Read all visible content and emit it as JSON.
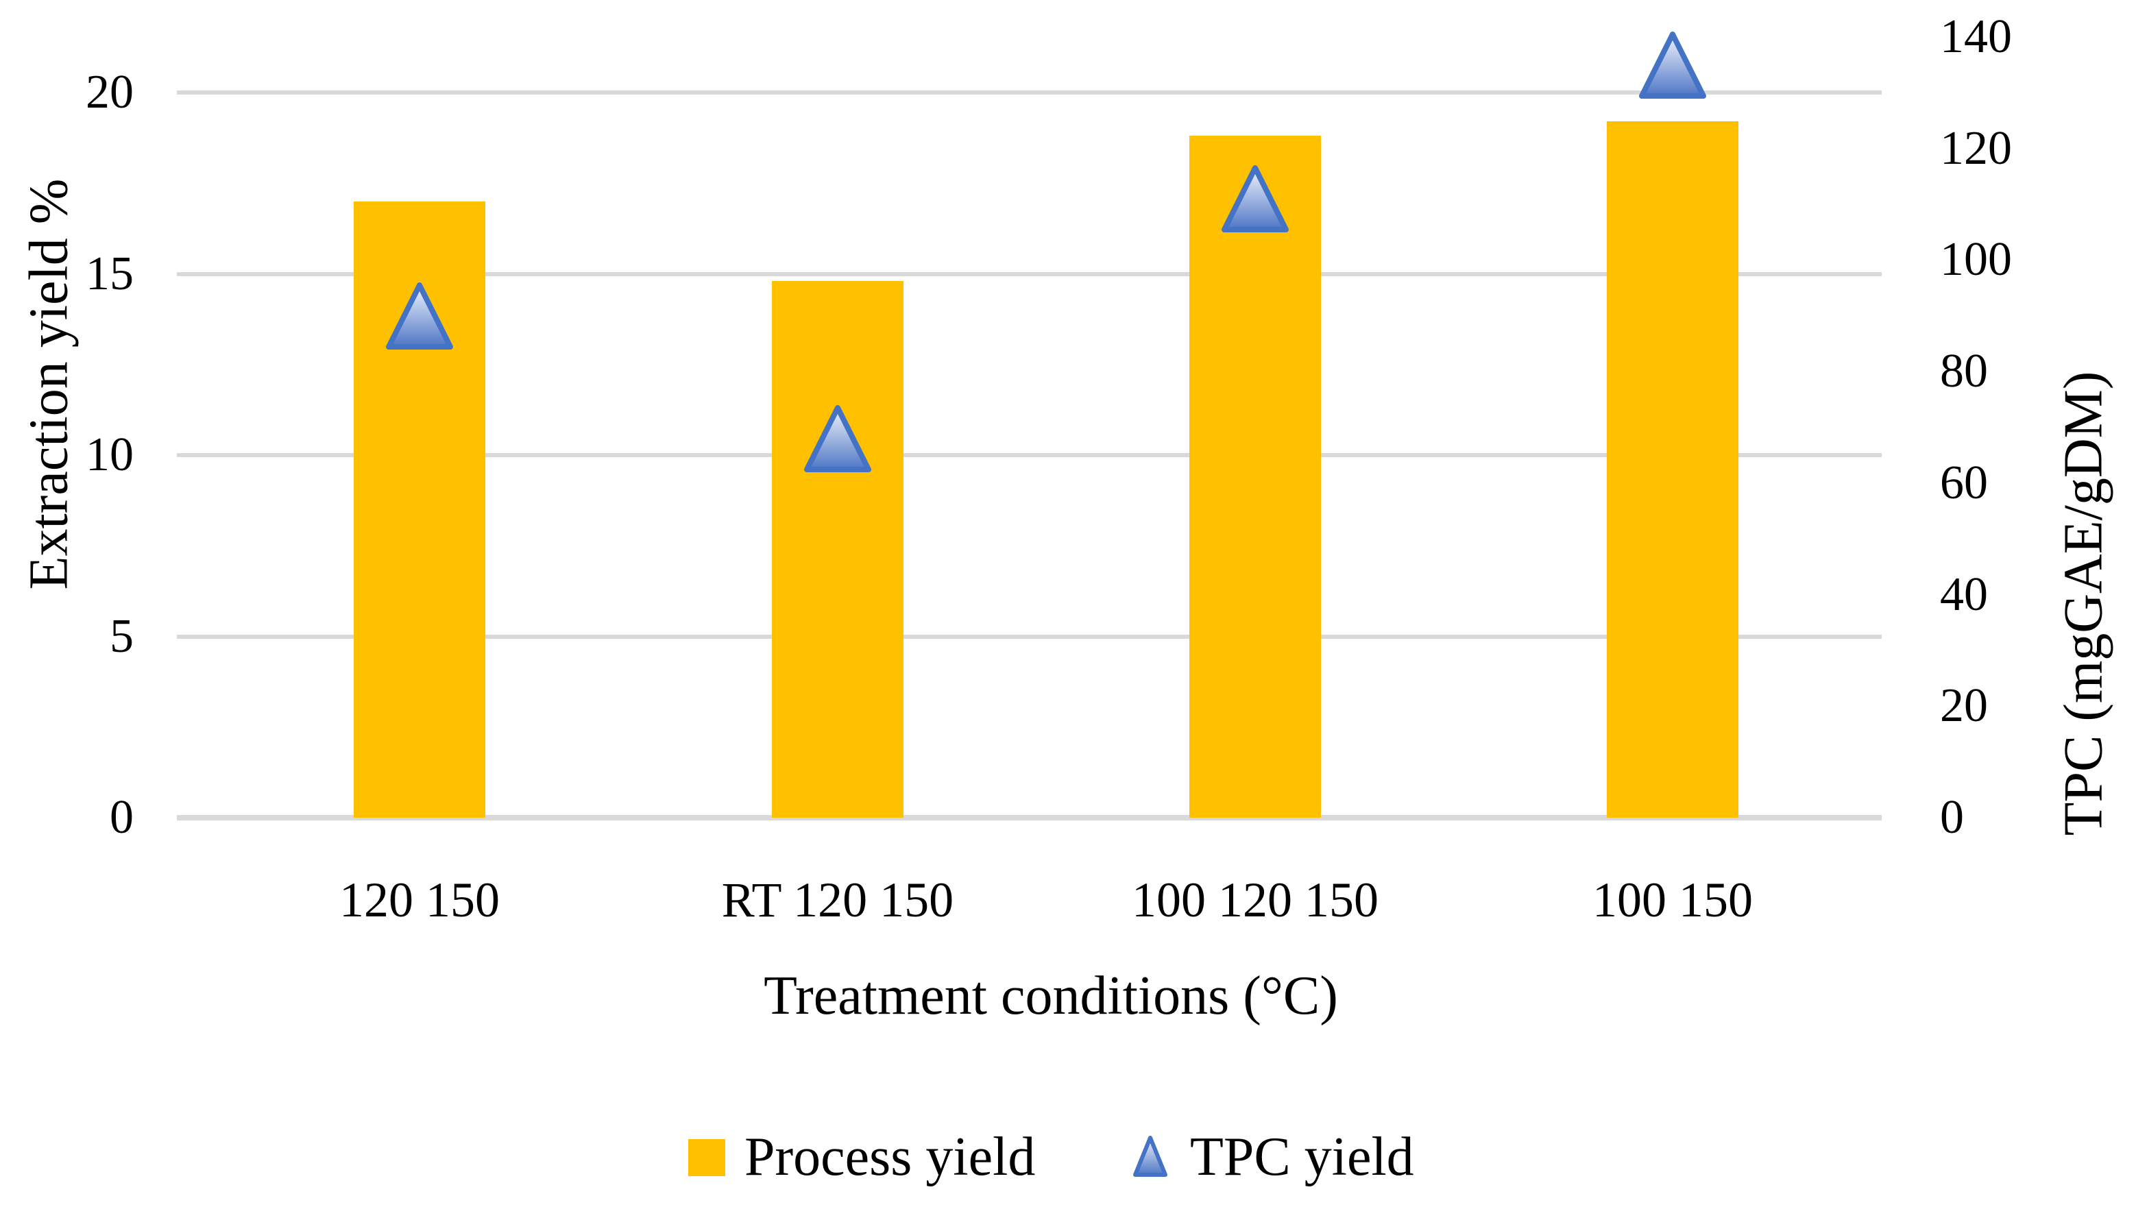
{
  "chart_data": {
    "type": "combo",
    "categories": [
      "120 150",
      "RT 120 150",
      "100 120 150",
      "100 150"
    ],
    "series": [
      {
        "name": "Process yield",
        "type": "bar",
        "axis": "left",
        "values": [
          17.0,
          14.8,
          18.8,
          19.2
        ],
        "color": "#FFC000"
      },
      {
        "name": "TPC yield",
        "type": "scatter",
        "marker": "triangle",
        "axis": "right",
        "values": [
          90,
          68,
          111,
          135
        ],
        "marker_stroke": "#4472C4",
        "marker_gradient_top": "#EFF3FB",
        "marker_gradient_mid": "#A9BCE4",
        "marker_gradient_bottom": "#4E76C6"
      }
    ],
    "xlabel": "Treatment conditions (°C)",
    "ylabel_left": "Extraction yield %",
    "ylabel_right": "TPC (mgGAE/gDM)",
    "left_axis": {
      "min": 0,
      "max": 20,
      "ticks": [
        0,
        5,
        10,
        15,
        20
      ]
    },
    "right_axis": {
      "min": 0,
      "max": 140,
      "ticks": [
        0,
        20,
        40,
        60,
        80,
        100,
        120,
        140
      ]
    },
    "grid": "horizontal",
    "gridline_color": "#D9D9D9",
    "legend_position": "bottom",
    "legend": [
      {
        "label": "Process yield",
        "marker": "square",
        "color": "#FFC000"
      },
      {
        "label": "TPC yield",
        "marker": "triangle",
        "color": "#4472C4"
      }
    ]
  }
}
